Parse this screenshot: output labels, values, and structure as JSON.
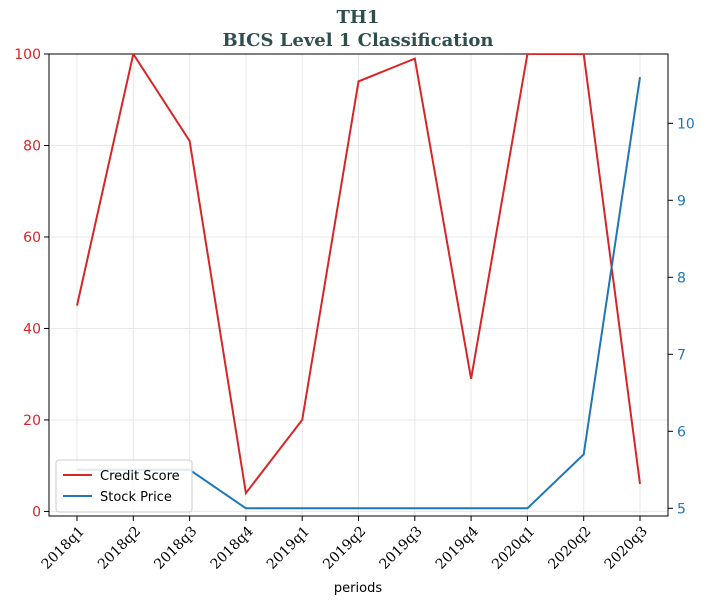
{
  "chart_data": {
    "type": "line",
    "title": "TH1",
    "subtitle": "BICS Level 1 Classification",
    "xlabel": "periods",
    "categories": [
      "2018q1",
      "2018q2",
      "2018q3",
      "2018q4",
      "2019q1",
      "2019q2",
      "2019q3",
      "2019q4",
      "2020q1",
      "2020q2",
      "2020q3"
    ],
    "grid": true,
    "legend_position": "lower-left",
    "left_axis": {
      "ylim": [
        -1,
        100
      ],
      "ticks": [
        "0",
        "20",
        "40",
        "60",
        "80",
        "100"
      ],
      "color": "#d62728"
    },
    "right_axis": {
      "ylim": [
        4.9,
        10.9
      ],
      "ticks": [
        "5",
        "6",
        "7",
        "8",
        "9",
        "10"
      ],
      "color": "#1f77b4"
    },
    "series": [
      {
        "name": "Credit Score",
        "axis": "left",
        "color": "#d62728",
        "values": [
          45,
          100,
          81,
          4,
          20,
          94,
          99,
          29,
          100,
          100,
          6
        ]
      },
      {
        "name": "Stock Price",
        "axis": "right",
        "color": "#1f77b4",
        "values": [
          5.5,
          5.5,
          5.5,
          5.0,
          5.0,
          5.0,
          5.0,
          5.0,
          5.0,
          5.7,
          10.6
        ]
      }
    ]
  }
}
